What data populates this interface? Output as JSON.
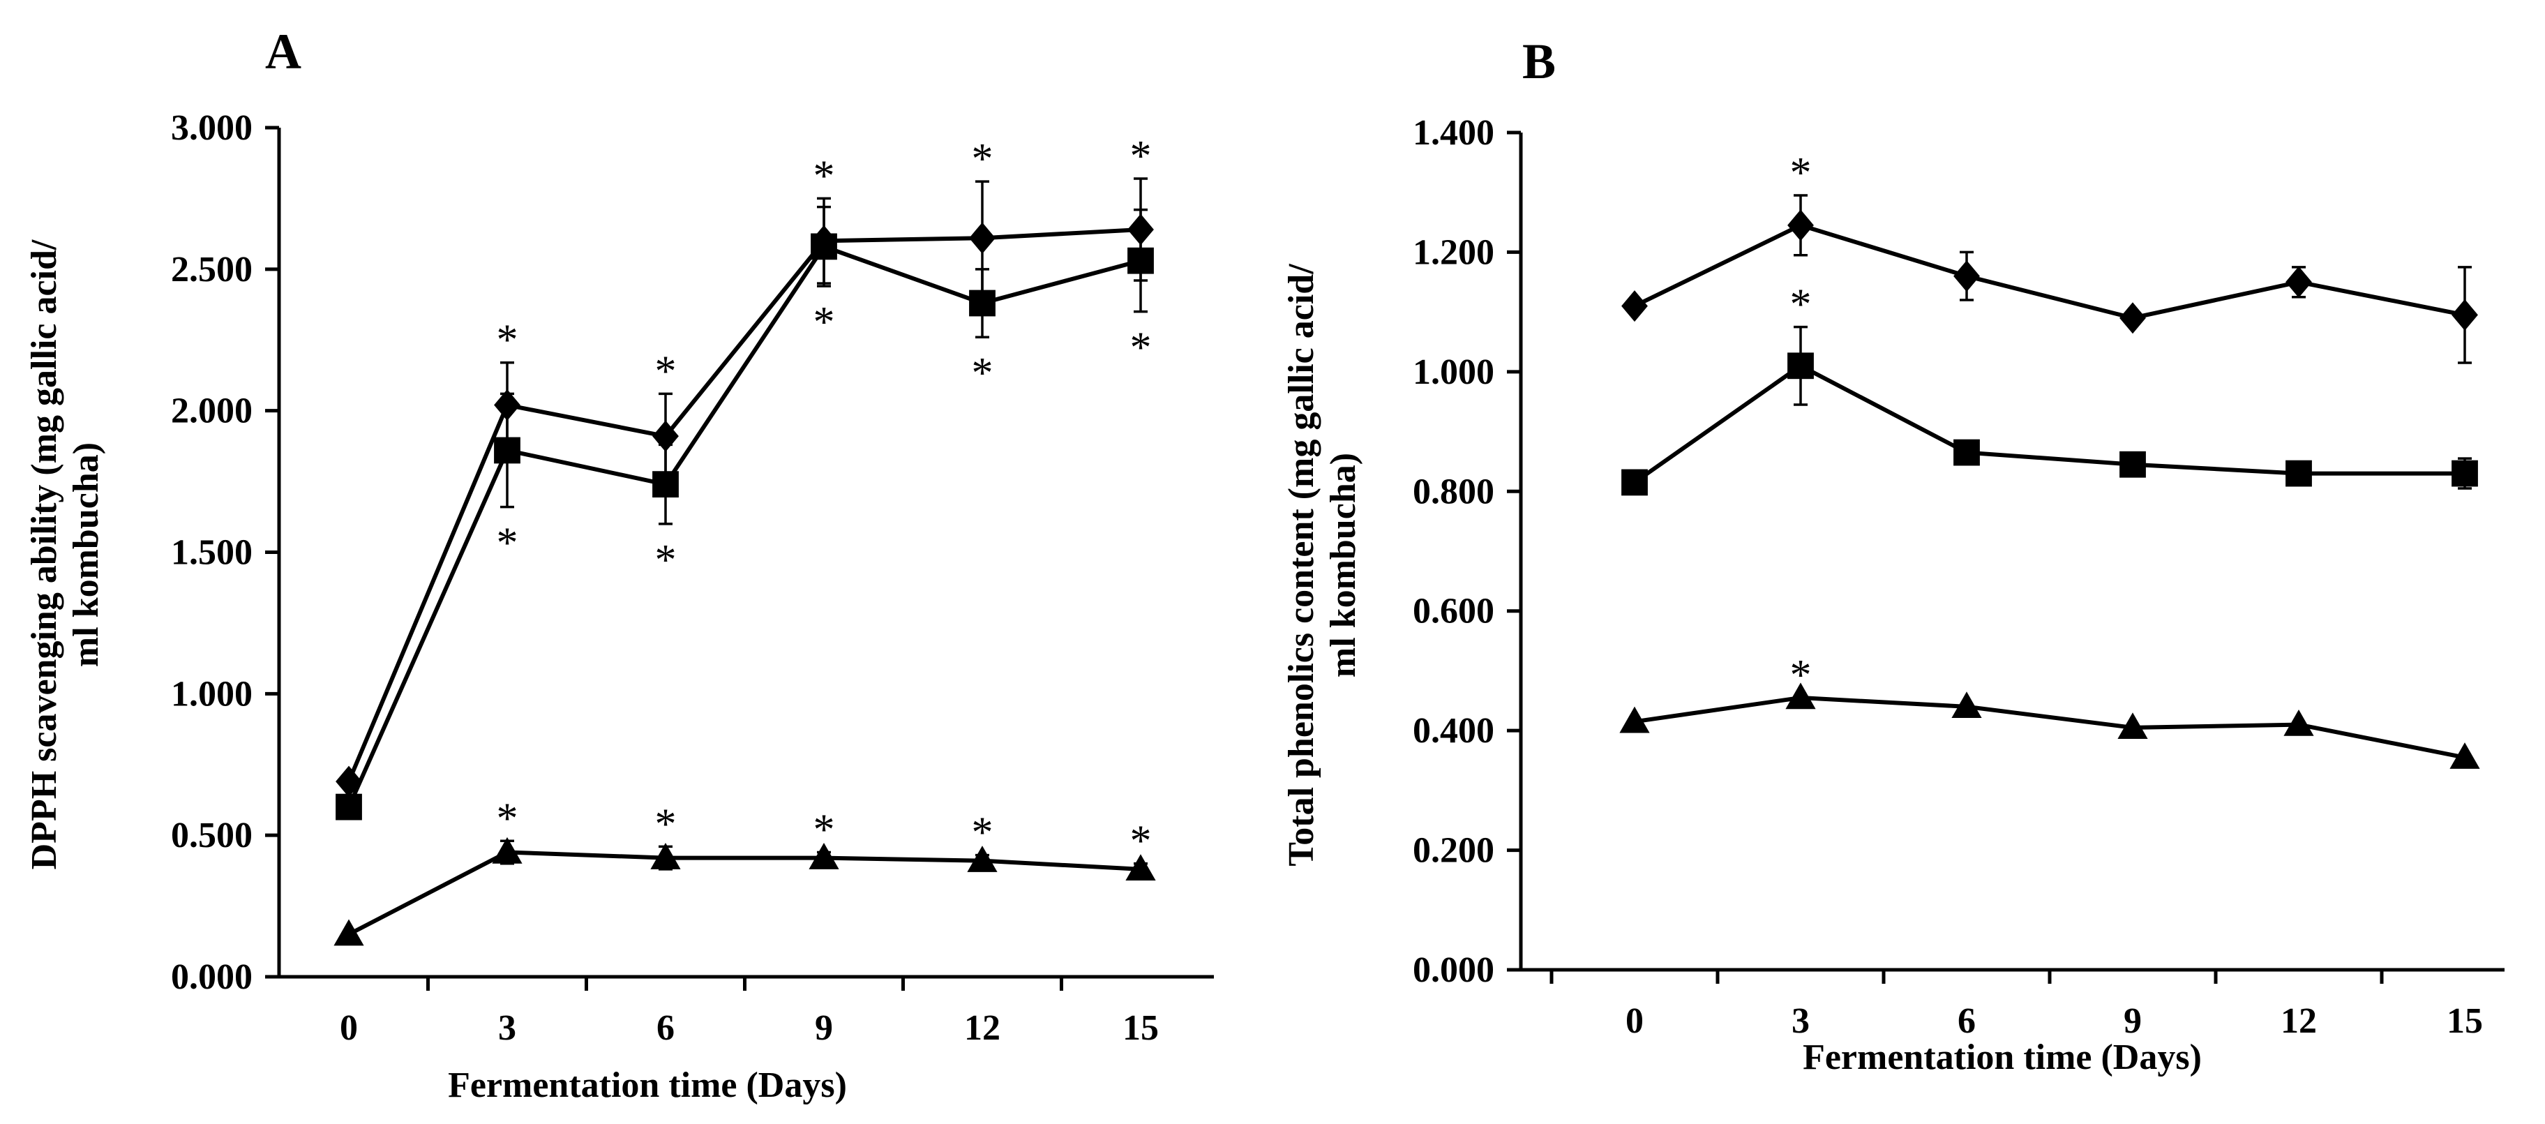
{
  "chart_data": [
    {
      "panel": "A",
      "type": "line",
      "ylabel_lines": [
        "DPPH scavenging ability (mg gallic acid/",
        "ml kombucha)"
      ],
      "xlabel": "Fermentation time (Days)",
      "x": [
        0,
        3,
        6,
        9,
        12,
        15
      ],
      "x_tick_labels": [
        "0",
        "3",
        "6",
        "9",
        "12",
        "15"
      ],
      "ylim": [
        0,
        3
      ],
      "y_ticks": [
        0,
        0.5,
        1,
        1.5,
        2,
        2.5,
        3
      ],
      "y_tick_labels": [
        "0.000",
        "0.500",
        "1.000",
        "1.500",
        "2.000",
        "2.500",
        "3.000"
      ],
      "series": [
        {
          "marker": "diamond",
          "values": [
            0.69,
            2.02,
            1.91,
            2.6,
            2.61,
            2.64
          ],
          "errors": [
            0.0,
            0.15,
            0.15,
            0.15,
            0.2,
            0.18
          ],
          "significance": [
            "",
            "*",
            "*",
            "*",
            "*",
            "*"
          ]
        },
        {
          "marker": "square",
          "values": [
            0.6,
            1.86,
            1.74,
            2.58,
            2.38,
            2.53
          ],
          "errors": [
            0.0,
            0.2,
            0.14,
            0.14,
            0.12,
            0.18
          ],
          "significance": [
            "",
            "*",
            "*",
            "*",
            "*",
            "*"
          ]
        },
        {
          "marker": "triangle",
          "values": [
            0.15,
            0.44,
            0.42,
            0.42,
            0.41,
            0.38
          ],
          "errors": [
            0.0,
            0.04,
            0.04,
            0.02,
            0.02,
            0.02
          ],
          "significance": [
            "",
            "*",
            "*",
            "*",
            "*",
            "*"
          ]
        }
      ]
    },
    {
      "panel": "B",
      "type": "line",
      "ylabel_lines": [
        "Total phenolics content  (mg gallic acid/",
        "ml kombucha)"
      ],
      "xlabel": "Fermentation time (Days)",
      "x": [
        0,
        3,
        6,
        9,
        12,
        15
      ],
      "x_tick_labels": [
        "0",
        "3",
        "6",
        "9",
        "12",
        "15"
      ],
      "ylim": [
        0,
        1.4
      ],
      "y_ticks": [
        0,
        0.2,
        0.4,
        0.6,
        0.8,
        1,
        1.2,
        1.4
      ],
      "y_tick_labels": [
        "0.000",
        "0.200",
        "0.400",
        "0.600",
        "0.800",
        "1.000",
        "1.200",
        "1.400"
      ],
      "series": [
        {
          "marker": "diamond",
          "values": [
            1.11,
            1.245,
            1.16,
            1.09,
            1.15,
            1.095
          ],
          "errors": [
            0.0,
            0.05,
            0.04,
            0.0,
            0.025,
            0.08
          ],
          "significance": [
            "",
            "*",
            "",
            "",
            "",
            ""
          ]
        },
        {
          "marker": "square",
          "values": [
            0.815,
            1.01,
            0.865,
            0.845,
            0.83,
            0.83
          ],
          "errors": [
            0.0,
            0.065,
            0.0,
            0.0,
            0.0,
            0.025
          ],
          "significance": [
            "",
            "*",
            "",
            "",
            "",
            ""
          ]
        },
        {
          "marker": "triangle",
          "values": [
            0.415,
            0.455,
            0.44,
            0.405,
            0.41,
            0.355
          ],
          "errors": [
            0.0,
            0.0,
            0.0,
            0.0,
            0.0,
            0.0
          ],
          "significance": [
            "",
            "*",
            "",
            "",
            "",
            ""
          ]
        }
      ]
    }
  ]
}
